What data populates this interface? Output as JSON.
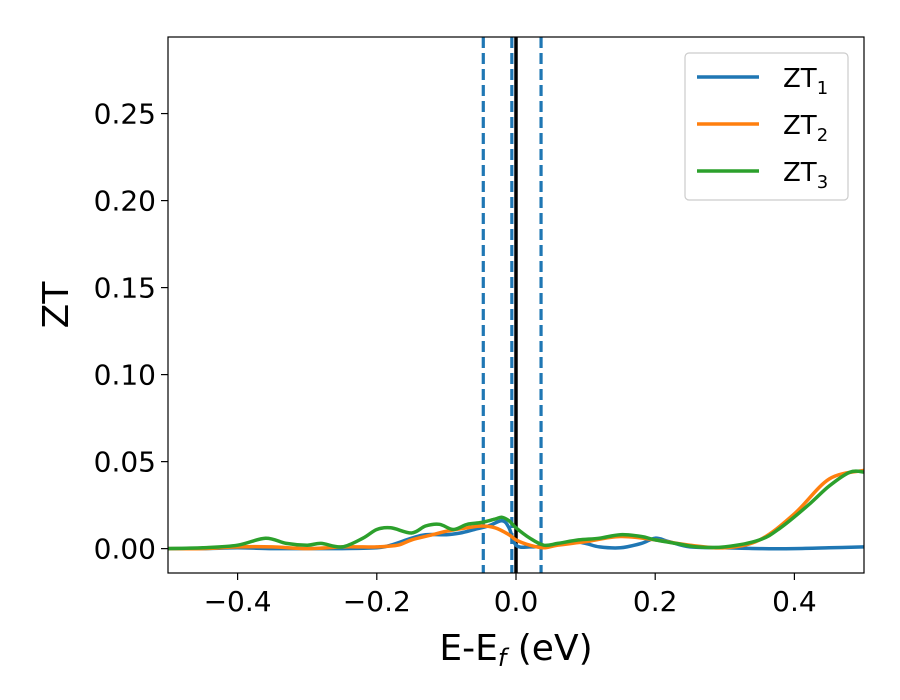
{
  "chart_data": {
    "type": "line",
    "xlabel": "E-E",
    "xlabel_sub": "f",
    "xlabel_unit": " (eV)",
    "ylabel": "ZT",
    "xlim": [
      -0.5,
      0.5
    ],
    "ylim": [
      -0.014,
      0.294
    ],
    "xticks": [
      -0.4,
      -0.2,
      0.0,
      0.2,
      0.4
    ],
    "xtick_labels": [
      "−0.4",
      "−0.2",
      "0.0",
      "0.2",
      "0.4"
    ],
    "yticks": [
      0.0,
      0.05,
      0.1,
      0.15,
      0.2,
      0.25
    ],
    "ytick_labels": [
      "0.00",
      "0.05",
      "0.10",
      "0.15",
      "0.20",
      "0.25"
    ],
    "grid": false,
    "legend_position": "top-right",
    "vertical_lines": [
      {
        "x": -0.047,
        "style": "dashed",
        "color": "#1f77b4"
      },
      {
        "x": -0.006,
        "style": "dashed",
        "color": "#1f77b4"
      },
      {
        "x": 0.0,
        "style": "solid",
        "color": "#000000"
      },
      {
        "x": 0.036,
        "style": "dashed",
        "color": "#1f77b4"
      }
    ],
    "series": [
      {
        "name": "ZT",
        "subscript": "1",
        "color": "#1f77b4",
        "x": [
          -0.5,
          -0.45,
          -0.4,
          -0.35,
          -0.3,
          -0.25,
          -0.2,
          -0.18,
          -0.15,
          -0.13,
          -0.1,
          -0.08,
          -0.06,
          -0.04,
          -0.02,
          -0.01,
          0.0,
          0.02,
          0.05,
          0.08,
          0.1,
          0.12,
          0.15,
          0.18,
          0.2,
          0.22,
          0.25,
          0.3,
          0.35,
          0.4,
          0.45,
          0.5
        ],
        "y": [
          0.0,
          0.0,
          0.0005,
          0.0,
          0.0,
          0.0,
          0.0005,
          0.002,
          0.006,
          0.008,
          0.008,
          0.009,
          0.011,
          0.013,
          0.016,
          0.012,
          0.002,
          0.001,
          0.002,
          0.004,
          0.003,
          0.001,
          0.0005,
          0.003,
          0.006,
          0.004,
          0.001,
          0.0005,
          0.0,
          0.0,
          0.0005,
          0.001
        ]
      },
      {
        "name": "ZT",
        "subscript": "2",
        "color": "#ff7f0e",
        "x": [
          -0.5,
          -0.45,
          -0.4,
          -0.35,
          -0.3,
          -0.25,
          -0.22,
          -0.2,
          -0.17,
          -0.15,
          -0.12,
          -0.1,
          -0.07,
          -0.05,
          -0.03,
          -0.01,
          0.0,
          0.02,
          0.04,
          0.06,
          0.1,
          0.15,
          0.2,
          0.25,
          0.3,
          0.35,
          0.4,
          0.45,
          0.5
        ],
        "y": [
          0.0,
          0.0,
          0.001,
          0.001,
          0.0,
          0.001,
          0.001,
          0.001,
          0.002,
          0.005,
          0.008,
          0.01,
          0.012,
          0.013,
          0.012,
          0.008,
          0.005,
          0.002,
          0.0005,
          0.002,
          0.004,
          0.007,
          0.005,
          0.002,
          0.0005,
          0.005,
          0.02,
          0.04,
          0.045
        ]
      },
      {
        "name": "ZT",
        "subscript": "3",
        "color": "#2ca02c",
        "x": [
          -0.5,
          -0.45,
          -0.4,
          -0.36,
          -0.33,
          -0.3,
          -0.28,
          -0.25,
          -0.22,
          -0.2,
          -0.18,
          -0.15,
          -0.13,
          -0.11,
          -0.09,
          -0.07,
          -0.05,
          -0.03,
          -0.02,
          -0.01,
          0.0,
          0.02,
          0.04,
          0.06,
          0.09,
          0.12,
          0.15,
          0.18,
          0.2,
          0.23,
          0.26,
          0.3,
          0.35,
          0.38,
          0.42,
          0.45,
          0.48,
          0.5
        ],
        "y": [
          0.0,
          0.0005,
          0.002,
          0.006,
          0.003,
          0.002,
          0.003,
          0.001,
          0.006,
          0.011,
          0.012,
          0.009,
          0.013,
          0.014,
          0.011,
          0.014,
          0.015,
          0.017,
          0.018,
          0.016,
          0.012,
          0.006,
          0.002,
          0.003,
          0.005,
          0.006,
          0.008,
          0.007,
          0.005,
          0.003,
          0.001,
          0.001,
          0.005,
          0.012,
          0.025,
          0.036,
          0.044,
          0.044
        ]
      }
    ]
  }
}
